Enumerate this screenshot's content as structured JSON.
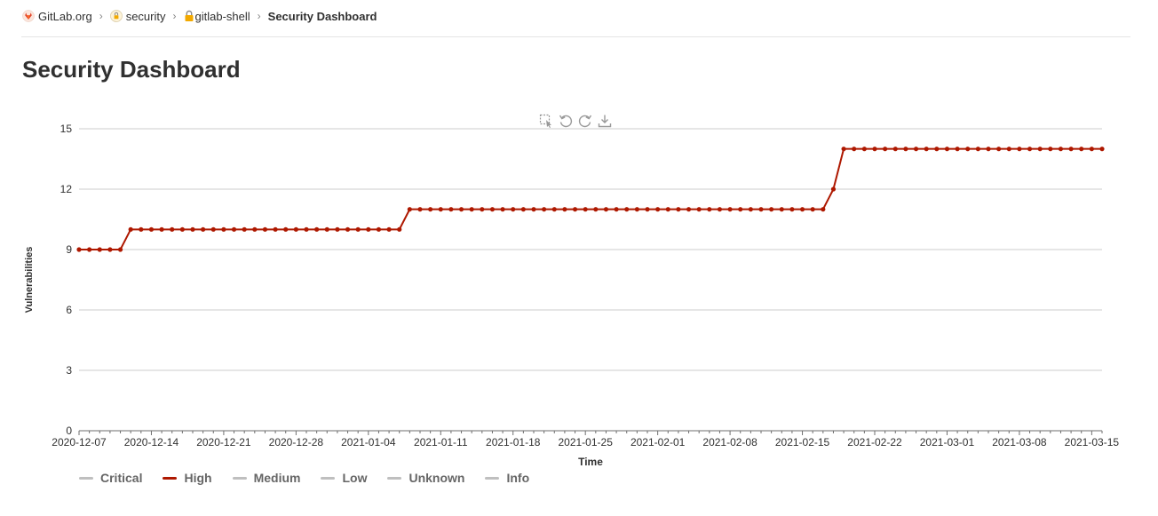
{
  "breadcrumb": {
    "items": [
      {
        "label": "GitLab.org"
      },
      {
        "label": "security"
      },
      {
        "label": "gitlab-shell"
      },
      {
        "label": "Security Dashboard"
      }
    ]
  },
  "page": {
    "title": "Security Dashboard"
  },
  "toolbox": {
    "icons": [
      "data-zoom-icon",
      "zoom-reset-icon",
      "restore-icon",
      "download-icon"
    ]
  },
  "colors": {
    "high": "#ae1800",
    "inactive_legend": "#bfbfbf",
    "grid": "#cccccc",
    "axis": "#6e6e6e"
  },
  "chart_data": {
    "type": "line",
    "title": "",
    "xlabel": "Time",
    "ylabel": "Vulnerabilities",
    "ylim": [
      0,
      15
    ],
    "yticks": [
      0,
      3,
      6,
      9,
      12,
      15
    ],
    "xlim": [
      "2020-12-07",
      "2021-03-16"
    ],
    "xticks": [
      "2020-12-07",
      "2020-12-14",
      "2020-12-21",
      "2020-12-28",
      "2021-01-04",
      "2021-01-11",
      "2021-01-18",
      "2021-01-25",
      "2021-02-01",
      "2021-02-08",
      "2021-02-15",
      "2021-02-22",
      "2021-03-01",
      "2021-03-08",
      "2021-03-15"
    ],
    "grid": true,
    "legend_position": "bottom-left",
    "series": [
      {
        "name": "Critical",
        "active": false,
        "values": []
      },
      {
        "name": "High",
        "active": true,
        "x": [
          "2020-12-07",
          "2020-12-08",
          "2020-12-09",
          "2020-12-10",
          "2020-12-11",
          "2020-12-12",
          "2020-12-13",
          "2020-12-14",
          "2020-12-15",
          "2020-12-16",
          "2020-12-17",
          "2020-12-18",
          "2020-12-19",
          "2020-12-20",
          "2020-12-21",
          "2020-12-22",
          "2020-12-23",
          "2020-12-24",
          "2020-12-25",
          "2020-12-26",
          "2020-12-27",
          "2020-12-28",
          "2020-12-29",
          "2020-12-30",
          "2020-12-31",
          "2021-01-01",
          "2021-01-02",
          "2021-01-03",
          "2021-01-04",
          "2021-01-05",
          "2021-01-06",
          "2021-01-07",
          "2021-01-08",
          "2021-01-09",
          "2021-01-10",
          "2021-01-11",
          "2021-01-12",
          "2021-01-13",
          "2021-01-14",
          "2021-01-15",
          "2021-01-16",
          "2021-01-17",
          "2021-01-18",
          "2021-01-19",
          "2021-01-20",
          "2021-01-21",
          "2021-01-22",
          "2021-01-23",
          "2021-01-24",
          "2021-01-25",
          "2021-01-26",
          "2021-01-27",
          "2021-01-28",
          "2021-01-29",
          "2021-01-30",
          "2021-01-31",
          "2021-02-01",
          "2021-02-02",
          "2021-02-03",
          "2021-02-04",
          "2021-02-05",
          "2021-02-06",
          "2021-02-07",
          "2021-02-08",
          "2021-02-09",
          "2021-02-10",
          "2021-02-11",
          "2021-02-12",
          "2021-02-13",
          "2021-02-14",
          "2021-02-15",
          "2021-02-16",
          "2021-02-17",
          "2021-02-18",
          "2021-02-19",
          "2021-02-20",
          "2021-02-21",
          "2021-02-22",
          "2021-02-23",
          "2021-02-24",
          "2021-02-25",
          "2021-02-26",
          "2021-02-27",
          "2021-02-28",
          "2021-03-01",
          "2021-03-02",
          "2021-03-03",
          "2021-03-04",
          "2021-03-05",
          "2021-03-06",
          "2021-03-07",
          "2021-03-08",
          "2021-03-09",
          "2021-03-10",
          "2021-03-11",
          "2021-03-12",
          "2021-03-13",
          "2021-03-14",
          "2021-03-15",
          "2021-03-16"
        ],
        "values": [
          9,
          9,
          9,
          9,
          9,
          10,
          10,
          10,
          10,
          10,
          10,
          10,
          10,
          10,
          10,
          10,
          10,
          10,
          10,
          10,
          10,
          10,
          10,
          10,
          10,
          10,
          10,
          10,
          10,
          10,
          10,
          10,
          11,
          11,
          11,
          11,
          11,
          11,
          11,
          11,
          11,
          11,
          11,
          11,
          11,
          11,
          11,
          11,
          11,
          11,
          11,
          11,
          11,
          11,
          11,
          11,
          11,
          11,
          11,
          11,
          11,
          11,
          11,
          11,
          11,
          11,
          11,
          11,
          11,
          11,
          11,
          11,
          11,
          12,
          14,
          14,
          14,
          14,
          14,
          14,
          14,
          14,
          14,
          14,
          14,
          14,
          14,
          14,
          14,
          14,
          14,
          14,
          14,
          14,
          14,
          14,
          14,
          14,
          14,
          14
        ]
      },
      {
        "name": "Medium",
        "active": false,
        "values": []
      },
      {
        "name": "Low",
        "active": false,
        "values": []
      },
      {
        "name": "Unknown",
        "active": false,
        "values": []
      },
      {
        "name": "Info",
        "active": false,
        "values": []
      }
    ]
  }
}
